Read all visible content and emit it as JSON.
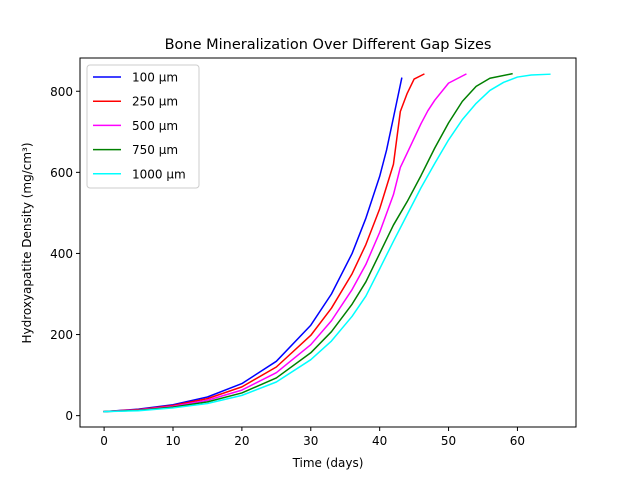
{
  "chart_data": {
    "type": "line",
    "title": "Bone Mineralization Over Different Gap Sizes",
    "xlabel": "Time (days)",
    "ylabel": "Hydroxyapatite Density (mg/cm³)",
    "xlim": [
      -3.5,
      68.5
    ],
    "ylim": [
      -28,
      882
    ],
    "xticks": [
      0,
      10,
      20,
      30,
      40,
      50,
      60
    ],
    "yticks": [
      0,
      200,
      400,
      600,
      800
    ],
    "grid": false,
    "legend_position": "top-left",
    "series": [
      {
        "name": "100 μm",
        "color": "#0000ff",
        "x": [
          0,
          5,
          10,
          15,
          20,
          25,
          30,
          33,
          36,
          38,
          40,
          41,
          42,
          43.2
        ],
        "y": [
          10,
          16,
          27,
          46,
          79,
          134,
          223,
          300,
          400,
          487,
          590,
          655,
          735,
          832
        ]
      },
      {
        "name": "250 μm",
        "color": "#ff0000",
        "x": [
          0,
          5,
          10,
          15,
          20,
          25,
          30,
          33,
          36,
          38,
          40,
          42,
          43,
          44,
          45,
          46.4
        ],
        "y": [
          10,
          15,
          25,
          42,
          71,
          120,
          198,
          265,
          350,
          422,
          510,
          620,
          750,
          795,
          830,
          842
        ]
      },
      {
        "name": "500 μm",
        "color": "#ff00ff",
        "x": [
          0,
          5,
          10,
          15,
          20,
          25,
          30,
          33,
          36,
          38,
          40,
          42,
          43,
          44,
          46,
          47,
          48,
          50,
          52.5
        ],
        "y": [
          10,
          14,
          23,
          38,
          63,
          106,
          175,
          234,
          311,
          373,
          452,
          545,
          612,
          648,
          720,
          752,
          778,
          820,
          842
        ]
      },
      {
        "name": "750 μm",
        "color": "#008000",
        "x": [
          0,
          5,
          10,
          15,
          20,
          25,
          30,
          33,
          36,
          38,
          40,
          42,
          44,
          46,
          48,
          50,
          52,
          54,
          56,
          59.2
        ],
        "y": [
          10,
          13,
          21,
          34,
          56,
          93,
          155,
          207,
          275,
          330,
          400,
          470,
          528,
          592,
          660,
          722,
          775,
          812,
          832,
          843
        ]
      },
      {
        "name": "1000 μm",
        "color": "#00ffff",
        "x": [
          0,
          5,
          10,
          15,
          20,
          25,
          30,
          33,
          36,
          38,
          40,
          42,
          44,
          46,
          48,
          50,
          52,
          54,
          56,
          58,
          60,
          62,
          64.7
        ],
        "y": [
          10,
          12,
          19,
          30,
          50,
          83,
          138,
          184,
          245,
          295,
          362,
          430,
          496,
          562,
          622,
          680,
          730,
          770,
          802,
          822,
          835,
          840,
          842
        ]
      }
    ]
  }
}
